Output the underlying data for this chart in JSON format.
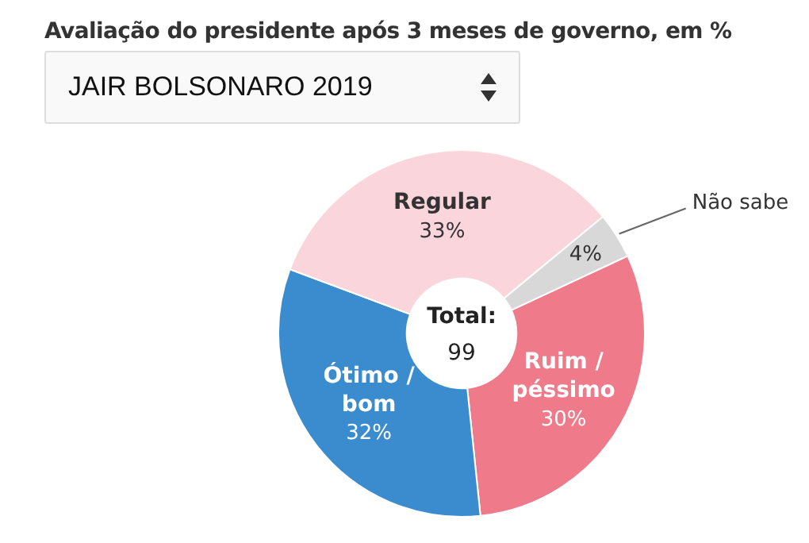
{
  "chart_data": {
    "type": "donut",
    "title": "Avaliação do presidente após 3 meses de governo, em %",
    "subtitle": "JAIR BOLSONARO 2019",
    "categories": [
      "Ruim / péssimo",
      "Ótimo / bom",
      "Regular",
      "Não sabe"
    ],
    "values": [
      30,
      32,
      33,
      4
    ],
    "colors": [
      "#ef7a8a",
      "#3a8ccf",
      "#fbd5dc",
      "#d8d8d8"
    ],
    "value_labels": [
      "30%",
      "32%",
      "33%",
      "4%"
    ],
    "annotations": [
      "Total:",
      "99"
    ],
    "legend": false
  }
}
